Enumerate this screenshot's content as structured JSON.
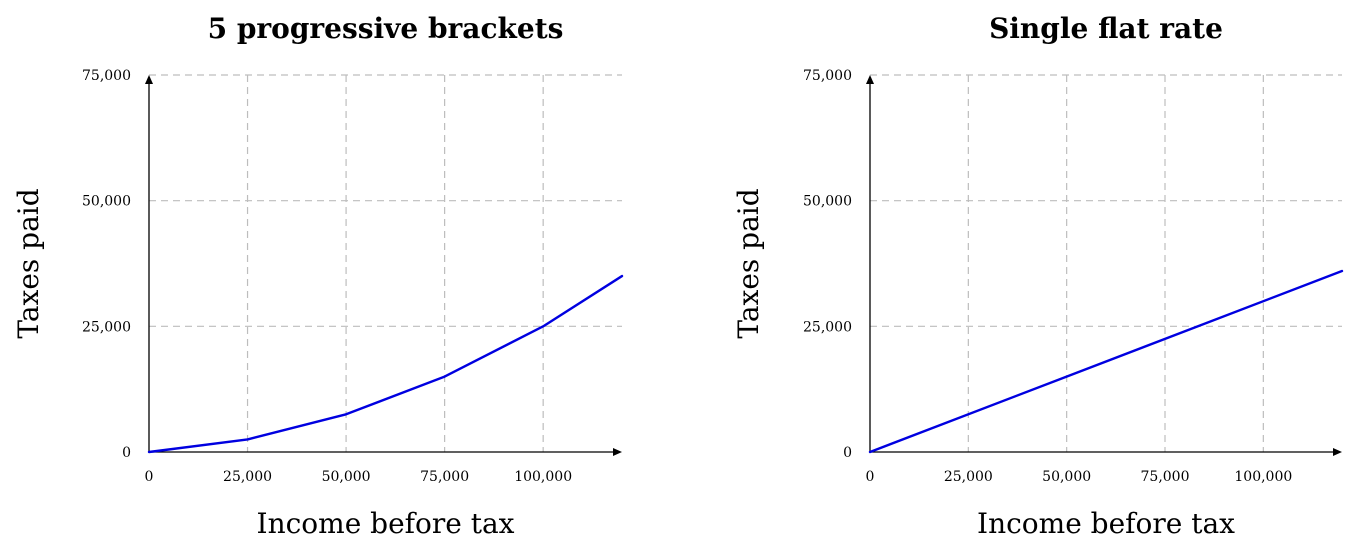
{
  "chart_data": [
    {
      "type": "line",
      "title": "5 progressive brackets",
      "xlabel": "Income before tax",
      "ylabel": "Taxes paid",
      "xlim": [
        0,
        120000
      ],
      "ylim": [
        0,
        75000
      ],
      "xticks": [
        0,
        25000,
        50000,
        75000,
        100000
      ],
      "xtick_labels": [
        "0",
        "25,000",
        "50,000",
        "75,000",
        "100,000"
      ],
      "yticks": [
        0,
        25000,
        50000,
        75000
      ],
      "ytick_labels": [
        "0",
        "25,000",
        "50,000",
        "75,000"
      ],
      "grid": true,
      "series": [
        {
          "color": "#0000e0",
          "x": [
            0,
            25000,
            50000,
            75000,
            100000,
            120000
          ],
          "y": [
            0,
            2500,
            7500,
            15000,
            25000,
            35000
          ]
        }
      ]
    },
    {
      "type": "line",
      "title": "Single flat rate",
      "xlabel": "Income before tax",
      "ylabel": "Taxes paid",
      "xlim": [
        0,
        120000
      ],
      "ylim": [
        0,
        75000
      ],
      "xticks": [
        0,
        25000,
        50000,
        75000,
        100000
      ],
      "xtick_labels": [
        "0",
        "25,000",
        "50,000",
        "75,000",
        "100,000"
      ],
      "yticks": [
        0,
        25000,
        50000,
        75000
      ],
      "ytick_labels": [
        "0",
        "25,000",
        "50,000",
        "75,000"
      ],
      "grid": true,
      "series": [
        {
          "color": "#0000e0",
          "x": [
            0,
            120000
          ],
          "y": [
            0,
            36000
          ]
        }
      ]
    }
  ]
}
